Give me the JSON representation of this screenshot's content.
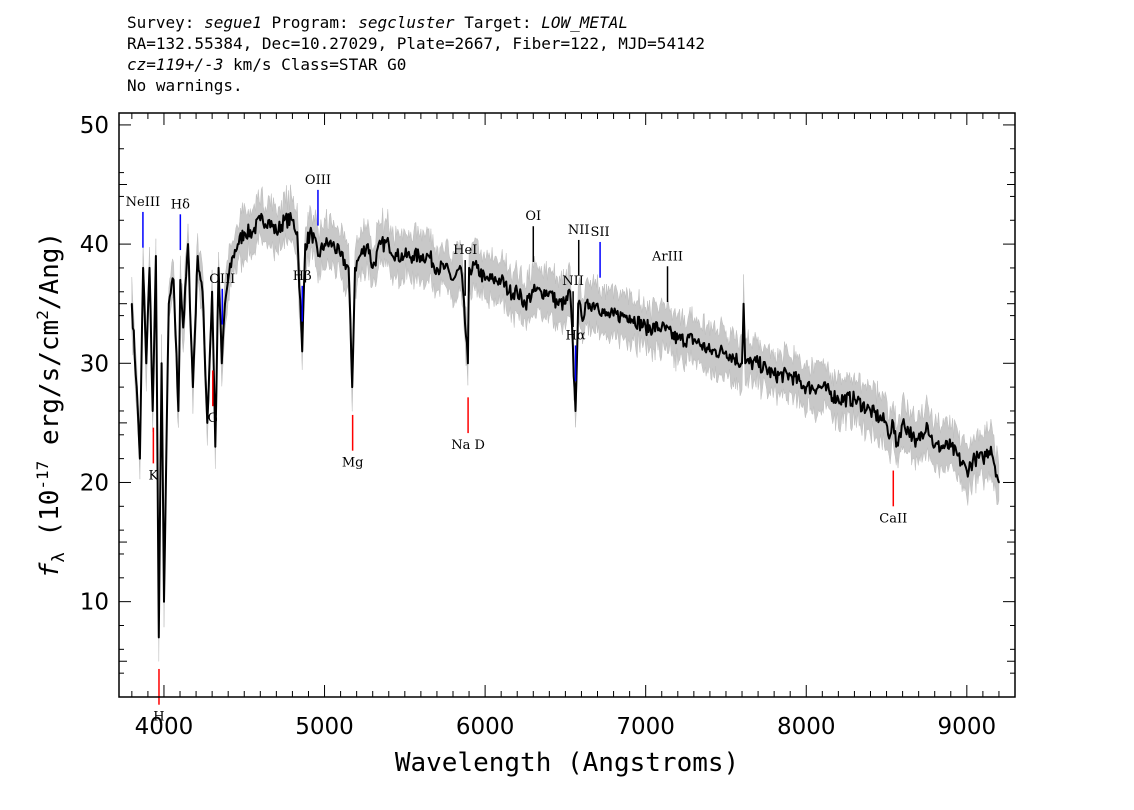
{
  "header": {
    "survey_label": "Survey:",
    "survey": "segue1",
    "program_label": "Program:",
    "program": "segcluster",
    "target_label": "Target:",
    "target": "LOW_METAL",
    "line2": "RA=132.55384, Dec=10.27029, Plate=2667, Fiber=122, MJD=54142",
    "z_value": "cz=119+/-3",
    "z_suffix": "km/s Class=STAR G0",
    "warnings": "No warnings."
  },
  "chart_data": {
    "type": "line",
    "title": "",
    "xlabel": "Wavelength (Angstroms)",
    "ylabel": "f_λ (10^-17 erg/s/cm^2/Ang)",
    "xlim": [
      3720,
      9300
    ],
    "ylim": [
      2,
      51
    ],
    "xticks": [
      "4000",
      "5000",
      "6000",
      "7000",
      "8000",
      "9000"
    ],
    "xtick_values": [
      4000,
      5000,
      6000,
      7000,
      8000,
      9000
    ],
    "yticks": [
      "10",
      "20",
      "30",
      "40",
      "50"
    ],
    "ytick_values": [
      10,
      20,
      30,
      40,
      50
    ],
    "grid": false,
    "series": [
      {
        "color": "#000000",
        "x": [
          3800,
          3830,
          3850,
          3870,
          3890,
          3910,
          3930,
          3950,
          3968,
          3985,
          4000,
          4030,
          4060,
          4090,
          4102,
          4120,
          4150,
          4180,
          4210,
          4240,
          4270,
          4300,
          4320,
          4340,
          4360,
          4380,
          4400,
          4430,
          4460,
          4500,
          4550,
          4600,
          4650,
          4700,
          4750,
          4800,
          4830,
          4861,
          4880,
          4920,
          4960,
          5000,
          5050,
          5100,
          5150,
          5172,
          5190,
          5220,
          5270,
          5300,
          5350,
          5400,
          5450,
          5500,
          5550,
          5600,
          5650,
          5700,
          5750,
          5800,
          5850,
          5893,
          5900,
          5950,
          6000,
          6050,
          6100,
          6150,
          6200,
          6250,
          6300,
          6350,
          6400,
          6450,
          6500,
          6530,
          6563,
          6580,
          6600,
          6650,
          6700,
          6750,
          6800,
          6850,
          6900,
          7000,
          7100,
          7200,
          7300,
          7400,
          7500,
          7600,
          7610,
          7620,
          7700,
          7800,
          7900,
          8000,
          8100,
          8200,
          8300,
          8400,
          8498,
          8510,
          8542,
          8560,
          8600,
          8662,
          8680,
          8750,
          8800,
          8900,
          9000,
          9050,
          9100,
          9150,
          9200
        ],
        "values": [
          35,
          28,
          22,
          38,
          30,
          38,
          26,
          39,
          7,
          30,
          10,
          35,
          37,
          26,
          37,
          33,
          40,
          28,
          39,
          36,
          25,
          36,
          23,
          38,
          30,
          35,
          37,
          39,
          40,
          41,
          41,
          42,
          42,
          41,
          42,
          42,
          41,
          31,
          40,
          41,
          39,
          40,
          40,
          39,
          38,
          28,
          38,
          39,
          40,
          38,
          40,
          40,
          39,
          39,
          39,
          39,
          39,
          38,
          38,
          37,
          38,
          30,
          38,
          38,
          37,
          37,
          37,
          36,
          36,
          35,
          36,
          36,
          36,
          35,
          35,
          36,
          26,
          35,
          34,
          35,
          35,
          34,
          34,
          34,
          34,
          33,
          33,
          32,
          32,
          31,
          31,
          30,
          35,
          30,
          30,
          29,
          29,
          28,
          28,
          27,
          27,
          26,
          25,
          24,
          25,
          23,
          25,
          24,
          23,
          25,
          23,
          23,
          21,
          22,
          22,
          23,
          20
        ]
      }
    ],
    "lines": [
      {
        "name": "ΝeIII",
        "wavelength": 3869,
        "color": "blue"
      },
      {
        "name": "Hδ",
        "wavelength": 4102,
        "color": "blue"
      },
      {
        "name": "OIII",
        "wavelength": 4363,
        "color": "blue"
      },
      {
        "name": "Hβ",
        "wavelength": 4861,
        "color": "blue"
      },
      {
        "name": "OIII",
        "wavelength": 4959,
        "color": "blue"
      },
      {
        "name": "HeI",
        "wavelength": 5876,
        "color": "black"
      },
      {
        "name": "OI",
        "wavelength": 6300,
        "color": "black"
      },
      {
        "name": "NII",
        "wavelength": 6548,
        "color": "black"
      },
      {
        "name": "Hα",
        "wavelength": 6563,
        "color": "blue"
      },
      {
        "name": "NII",
        "wavelength": 6583,
        "color": "black"
      },
      {
        "name": "SII",
        "wavelength": 6716,
        "color": "blue"
      },
      {
        "name": "ArIII",
        "wavelength": 7136,
        "color": "black"
      },
      {
        "name": "K",
        "wavelength": 3934,
        "color": "red"
      },
      {
        "name": "H",
        "wavelength": 3969,
        "color": "red"
      },
      {
        "name": "G",
        "wavelength": 4304,
        "color": "red"
      },
      {
        "name": "Mg",
        "wavelength": 5175,
        "color": "red"
      },
      {
        "name": "Na D",
        "wavelength": 5894,
        "color": "red"
      },
      {
        "name": "CaII",
        "wavelength": 8542,
        "color": "red"
      }
    ]
  }
}
